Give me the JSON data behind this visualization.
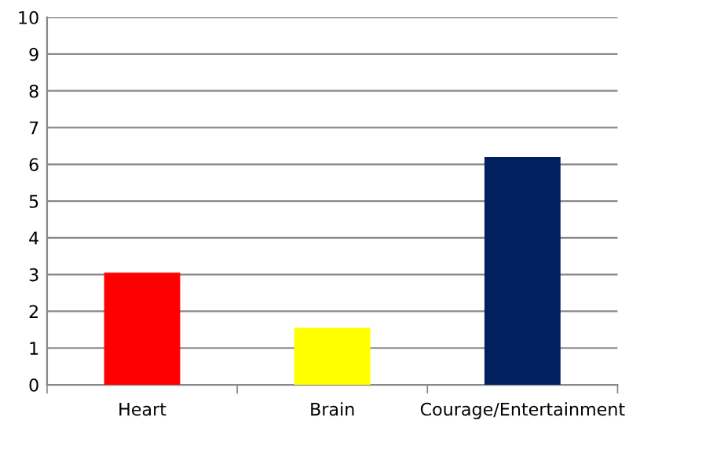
{
  "chart_data": {
    "type": "bar",
    "categories": [
      "Heart",
      "Brain",
      "Courage/Entertainment"
    ],
    "values": [
      3.05,
      1.55,
      6.2
    ],
    "colors": [
      "#ff0000",
      "#ffff00",
      "#002060"
    ],
    "ylim": [
      0,
      10
    ],
    "yticks": [
      0,
      1,
      2,
      3,
      4,
      5,
      6,
      7,
      8,
      9,
      10
    ],
    "grid": "y"
  }
}
